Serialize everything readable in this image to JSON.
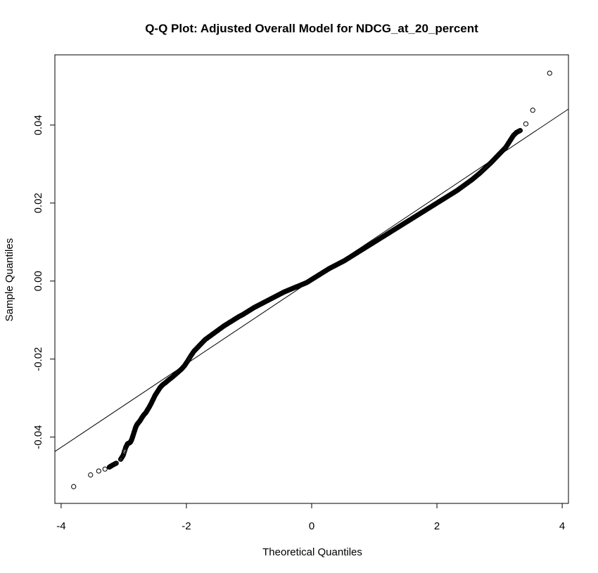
{
  "chart_data": {
    "type": "scatter",
    "title": "Q-Q Plot: Adjusted Overall Model for NDCG_at_20_percent",
    "xlabel": "Theoretical Quantiles",
    "ylabel": "Sample Quantiles",
    "xlim": [
      -4.1,
      4.1
    ],
    "ylim": [
      -0.057,
      0.058
    ],
    "x_ticks": [
      -4,
      -2,
      0,
      2,
      4
    ],
    "x_tick_labels": [
      "-4",
      "-2",
      "0",
      "2",
      "4"
    ],
    "y_ticks": [
      -0.04,
      -0.02,
      0.0,
      0.02,
      0.04
    ],
    "y_tick_labels": [
      "-0.04",
      "-0.02",
      "0.00",
      "0.02",
      "0.04"
    ],
    "grid": false,
    "legend": "none",
    "point_color": "#000000",
    "marker": "open-circle",
    "reference_line": {
      "x": [
        -4.1,
        4.1
      ],
      "y": [
        -0.0437,
        0.0441
      ]
    },
    "points": {
      "x": [
        -3.8,
        -3.53,
        -3.4,
        -3.3,
        -3.23,
        -3.18,
        -3.12,
        -3.05,
        -3.01,
        -2.97,
        -2.94,
        -2.91,
        -2.89,
        -2.87,
        -2.85,
        -2.83,
        -2.81,
        -2.79,
        -2.77,
        -2.74,
        -2.71,
        -2.68,
        -2.65,
        -2.62,
        -2.59,
        -2.56,
        -2.53,
        -2.5,
        -2.46,
        -2.42,
        -2.38,
        -2.33,
        -2.28,
        -2.23,
        -2.18,
        -2.13,
        -2.08,
        -2.03,
        -1.98,
        -1.93,
        -1.88,
        -1.82,
        -1.76,
        -1.7,
        -1.64,
        -1.58,
        -1.52,
        -1.46,
        -1.4,
        -1.34,
        -1.28,
        -1.22,
        -1.16,
        -1.1,
        -1.04,
        -0.98,
        -0.92,
        -0.86,
        -0.8,
        -0.74,
        -0.68,
        -0.62,
        -0.56,
        -0.5,
        -0.44,
        -0.38,
        -0.32,
        -0.26,
        -0.2,
        -0.14,
        -0.08,
        -0.02,
        0.04,
        0.1,
        0.16,
        0.22,
        0.28,
        0.34,
        0.4,
        0.46,
        0.52,
        0.58,
        0.64,
        0.7,
        0.76,
        0.82,
        0.88,
        0.94,
        1.0,
        1.06,
        1.12,
        1.18,
        1.24,
        1.3,
        1.36,
        1.42,
        1.48,
        1.54,
        1.6,
        1.66,
        1.72,
        1.78,
        1.84,
        1.9,
        1.96,
        2.02,
        2.08,
        2.14,
        2.2,
        2.26,
        2.32,
        2.38,
        2.44,
        2.5,
        2.56,
        2.62,
        2.68,
        2.74,
        2.8,
        2.86,
        2.92,
        2.98,
        3.04,
        3.1,
        3.14,
        3.18,
        3.22,
        3.27,
        3.33,
        3.42,
        3.53,
        3.8
      ],
      "y": [
        -0.0527,
        -0.0497,
        -0.0487,
        -0.0482,
        -0.0477,
        -0.0472,
        -0.0467,
        -0.0457,
        -0.0447,
        -0.0427,
        -0.0417,
        -0.0415,
        -0.0412,
        -0.0405,
        -0.0395,
        -0.0385,
        -0.0375,
        -0.0368,
        -0.0364,
        -0.0358,
        -0.035,
        -0.0343,
        -0.0338,
        -0.033,
        -0.0322,
        -0.0313,
        -0.0303,
        -0.0293,
        -0.0283,
        -0.0273,
        -0.0266,
        -0.026,
        -0.0253,
        -0.0247,
        -0.024,
        -0.0233,
        -0.0226,
        -0.0217,
        -0.0205,
        -0.0192,
        -0.018,
        -0.017,
        -0.016,
        -0.015,
        -0.0143,
        -0.0136,
        -0.0129,
        -0.0122,
        -0.0115,
        -0.0109,
        -0.0103,
        -0.0097,
        -0.0091,
        -0.0086,
        -0.008,
        -0.0074,
        -0.0068,
        -0.0063,
        -0.0058,
        -0.0053,
        -0.0048,
        -0.0043,
        -0.0038,
        -0.0033,
        -0.0028,
        -0.0024,
        -0.002,
        -0.0016,
        -0.0012,
        -0.0008,
        -0.0004,
        0.0002,
        0.0008,
        0.0014,
        0.002,
        0.0026,
        0.0032,
        0.0037,
        0.0042,
        0.0047,
        0.0052,
        0.0058,
        0.0064,
        0.007,
        0.0076,
        0.0082,
        0.0088,
        0.0094,
        0.01,
        0.0106,
        0.0112,
        0.0118,
        0.0124,
        0.013,
        0.0136,
        0.0142,
        0.0148,
        0.0154,
        0.016,
        0.0166,
        0.0172,
        0.0178,
        0.0184,
        0.019,
        0.0196,
        0.0202,
        0.0208,
        0.0214,
        0.022,
        0.0226,
        0.0232,
        0.0239,
        0.0246,
        0.0253,
        0.026,
        0.0268,
        0.0276,
        0.0285,
        0.0294,
        0.0303,
        0.0313,
        0.0323,
        0.0333,
        0.0343,
        0.0353,
        0.0363,
        0.0373,
        0.0381,
        0.0386,
        0.0403,
        0.0438,
        0.0533
      ]
    }
  }
}
